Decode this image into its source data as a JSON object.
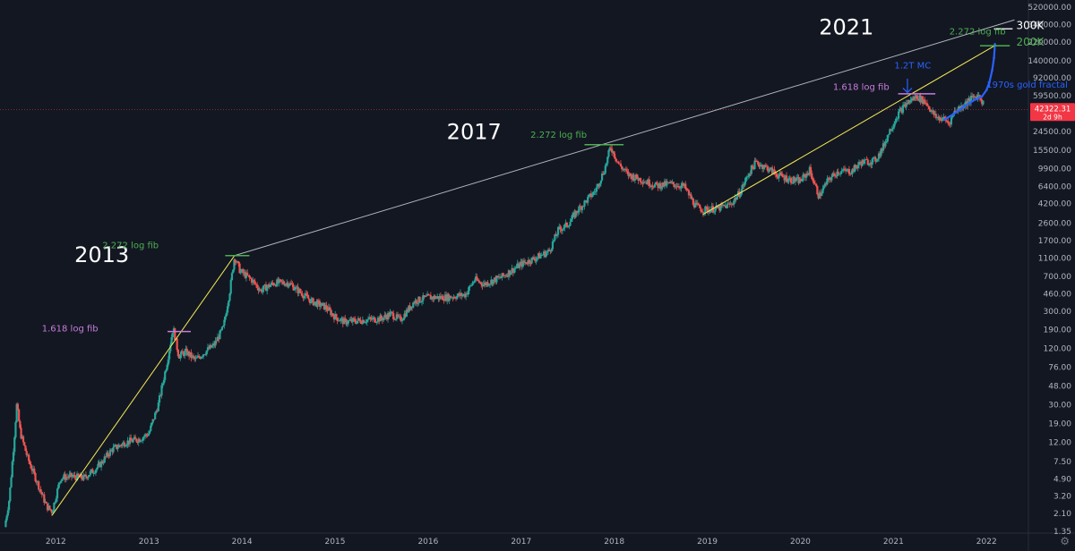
{
  "chart_data": {
    "type": "line",
    "title": "",
    "scale": "log",
    "grid": false,
    "x_ticks": [
      "2012",
      "2013",
      "2014",
      "2015",
      "2016",
      "2017",
      "2018",
      "2019",
      "2020",
      "2021",
      "2022"
    ],
    "y_ticks": [
      "520000.00",
      "340000.00",
      "220000.00",
      "140000.00",
      "92000.00",
      "59500.00",
      "24500.00",
      "15500.00",
      "9900.00",
      "6400.00",
      "4200.00",
      "2600.00",
      "1700.00",
      "1100.00",
      "700.00",
      "460.00",
      "300.00",
      "190.00",
      "120.00",
      "76.00",
      "48.00",
      "30.00",
      "19.00",
      "12.00",
      "7.50",
      "4.90",
      "3.20",
      "2.10",
      "1.35"
    ],
    "ylim": [
      1.35,
      520000
    ],
    "xlim": [
      2011.4,
      2022.45
    ],
    "current_price": {
      "label": "42322.31",
      "sublabel": "2d 9h",
      "value": 42322.31,
      "color": "#f23645"
    },
    "series": [
      {
        "name": "",
        "color_up": "#26a69a",
        "color_down": "#ef5350",
        "points": [
          [
            2011.45,
            1.5
          ],
          [
            2011.5,
            3
          ],
          [
            2011.55,
            12
          ],
          [
            2011.58,
            30
          ],
          [
            2011.62,
            15
          ],
          [
            2011.7,
            8
          ],
          [
            2011.8,
            4.5
          ],
          [
            2011.9,
            2.5
          ],
          [
            2011.96,
            2.2
          ],
          [
            2012.05,
            5
          ],
          [
            2012.15,
            5.2
          ],
          [
            2012.3,
            5
          ],
          [
            2012.45,
            6.5
          ],
          [
            2012.6,
            10
          ],
          [
            2012.75,
            12
          ],
          [
            2012.9,
            13
          ],
          [
            2013.0,
            15
          ],
          [
            2013.1,
            30
          ],
          [
            2013.2,
            90
          ],
          [
            2013.26,
            200
          ],
          [
            2013.32,
            100
          ],
          [
            2013.4,
            110
          ],
          [
            2013.5,
            90
          ],
          [
            2013.6,
            110
          ],
          [
            2013.7,
            130
          ],
          [
            2013.8,
            200
          ],
          [
            2013.87,
            500
          ],
          [
            2013.92,
            1150
          ],
          [
            2013.98,
            800
          ],
          [
            2014.1,
            650
          ],
          [
            2014.2,
            500
          ],
          [
            2014.35,
            600
          ],
          [
            2014.5,
            600
          ],
          [
            2014.6,
            500
          ],
          [
            2014.75,
            380
          ],
          [
            2014.9,
            330
          ],
          [
            2015.0,
            260
          ],
          [
            2015.1,
            230
          ],
          [
            2015.3,
            240
          ],
          [
            2015.5,
            250
          ],
          [
            2015.6,
            280
          ],
          [
            2015.7,
            240
          ],
          [
            2015.85,
            380
          ],
          [
            2016.0,
            420
          ],
          [
            2016.2,
            420
          ],
          [
            2016.4,
            450
          ],
          [
            2016.5,
            650
          ],
          [
            2016.6,
            580
          ],
          [
            2016.8,
            700
          ],
          [
            2017.0,
            950
          ],
          [
            2017.15,
            1100
          ],
          [
            2017.3,
            1300
          ],
          [
            2017.4,
            2200
          ],
          [
            2017.5,
            2500
          ],
          [
            2017.6,
            3500
          ],
          [
            2017.7,
            4500
          ],
          [
            2017.8,
            5800
          ],
          [
            2017.9,
            10000
          ],
          [
            2017.96,
            17000
          ],
          [
            2018.05,
            11000
          ],
          [
            2018.15,
            8500
          ],
          [
            2018.3,
            7500
          ],
          [
            2018.45,
            6500
          ],
          [
            2018.6,
            6800
          ],
          [
            2018.75,
            6400
          ],
          [
            2018.87,
            4000
          ],
          [
            2018.95,
            3600
          ],
          [
            2019.1,
            3700
          ],
          [
            2019.25,
            4100
          ],
          [
            2019.35,
            5500
          ],
          [
            2019.45,
            9000
          ],
          [
            2019.52,
            11500
          ],
          [
            2019.65,
            10000
          ],
          [
            2019.75,
            8500
          ],
          [
            2019.9,
            7500
          ],
          [
            2020.0,
            7300
          ],
          [
            2020.1,
            9500
          ],
          [
            2020.2,
            5000
          ],
          [
            2020.3,
            7500
          ],
          [
            2020.4,
            9200
          ],
          [
            2020.55,
            9300
          ],
          [
            2020.65,
            11500
          ],
          [
            2020.8,
            12000
          ],
          [
            2020.88,
            16000
          ],
          [
            2020.95,
            24000
          ],
          [
            2021.05,
            38000
          ],
          [
            2021.15,
            50000
          ],
          [
            2021.25,
            58000
          ],
          [
            2021.35,
            50000
          ],
          [
            2021.45,
            35000
          ],
          [
            2021.55,
            33000
          ],
          [
            2021.6,
            30000
          ],
          [
            2021.65,
            40000
          ],
          [
            2021.75,
            47000
          ],
          [
            2021.85,
            56000
          ],
          [
            2021.92,
            60000
          ],
          [
            2021.97,
            48000
          ]
        ]
      },
      {
        "name": "",
        "color": "#2962ff",
        "points": [
          [
            2021.55,
            33000
          ],
          [
            2021.65,
            38000
          ],
          [
            2021.75,
            45000
          ],
          [
            2021.85,
            52000
          ],
          [
            2021.95,
            58000
          ],
          [
            2022.0,
            68000
          ],
          [
            2022.03,
            82000
          ],
          [
            2022.06,
            110000
          ],
          [
            2022.08,
            150000
          ],
          [
            2022.09,
            210000
          ]
        ]
      }
    ],
    "trendlines": [
      {
        "color": "#f5ea55",
        "from": [
          2011.96,
          2.0
        ],
        "to": [
          2013.92,
          1170
        ]
      },
      {
        "color": "#b2b5be",
        "from": [
          2013.92,
          1170
        ],
        "to": [
          2022.3,
          380000
        ]
      },
      {
        "color": "#f5ea55",
        "from": [
          2018.95,
          3200
        ],
        "to": [
          2022.08,
          200000
        ]
      }
    ],
    "level_lines": [
      {
        "color": "#c77ddb",
        "x": [
          2013.2,
          2013.45
        ],
        "y": 182
      },
      {
        "color": "#4caf50",
        "x": [
          2013.82,
          2014.08
        ],
        "y": 1170
      },
      {
        "color": "#4caf50",
        "x": [
          2017.68,
          2018.1
        ],
        "y": 17800
      },
      {
        "color": "#c77ddb",
        "x": [
          2021.05,
          2021.45
        ],
        "y": 62000
      },
      {
        "color": "#4caf50",
        "x": [
          2021.93,
          2022.25
        ],
        "y": 202000
      },
      {
        "color": "#e0e0e0",
        "x": [
          2022.08,
          2022.28
        ],
        "y": 305000
      }
    ],
    "annotations": [
      {
        "text": "2013",
        "kind": "year",
        "color": "#ffffff",
        "x": 2012.2,
        "y": 1000
      },
      {
        "text": "2017",
        "kind": "year",
        "color": "#ffffff",
        "x": 2016.2,
        "y": 20500
      },
      {
        "text": "2021",
        "kind": "year",
        "color": "#ffffff",
        "x": 2020.2,
        "y": 265000
      },
      {
        "text": "1.618 log fib",
        "kind": "note",
        "color": "#c77ddb",
        "x": 2011.85,
        "y": 182
      },
      {
        "text": "2.272 log fib",
        "kind": "note",
        "color": "#4caf50",
        "x": 2012.5,
        "y": 1400
      },
      {
        "text": "2.272 log fib",
        "kind": "note",
        "color": "#4caf50",
        "x": 2017.1,
        "y": 21000
      },
      {
        "text": "1.618 log fib",
        "kind": "note",
        "color": "#c77ddb",
        "x": 2020.35,
        "y": 68000
      },
      {
        "text": "2.272 log fib",
        "kind": "note",
        "color": "#4caf50",
        "x": 2021.6,
        "y": 265000
      },
      {
        "text": "1.2T MC",
        "kind": "note",
        "color": "#2962ff",
        "x": 2021.01,
        "y": 115000
      },
      {
        "text": "1970s gold fractal",
        "kind": "note",
        "color": "#2962ff",
        "x": 2022.0,
        "y": 72000
      },
      {
        "text": "300K",
        "kind": "level",
        "color": "#ffffff",
        "x": 2022.32,
        "y": 305000
      },
      {
        "text": "200K",
        "kind": "level",
        "color": "#4caf50",
        "x": 2022.32,
        "y": 202000
      }
    ],
    "arrow": {
      "color": "#2962ff",
      "x": 2021.15,
      "from_y": 90000,
      "to_y": 64000
    }
  }
}
